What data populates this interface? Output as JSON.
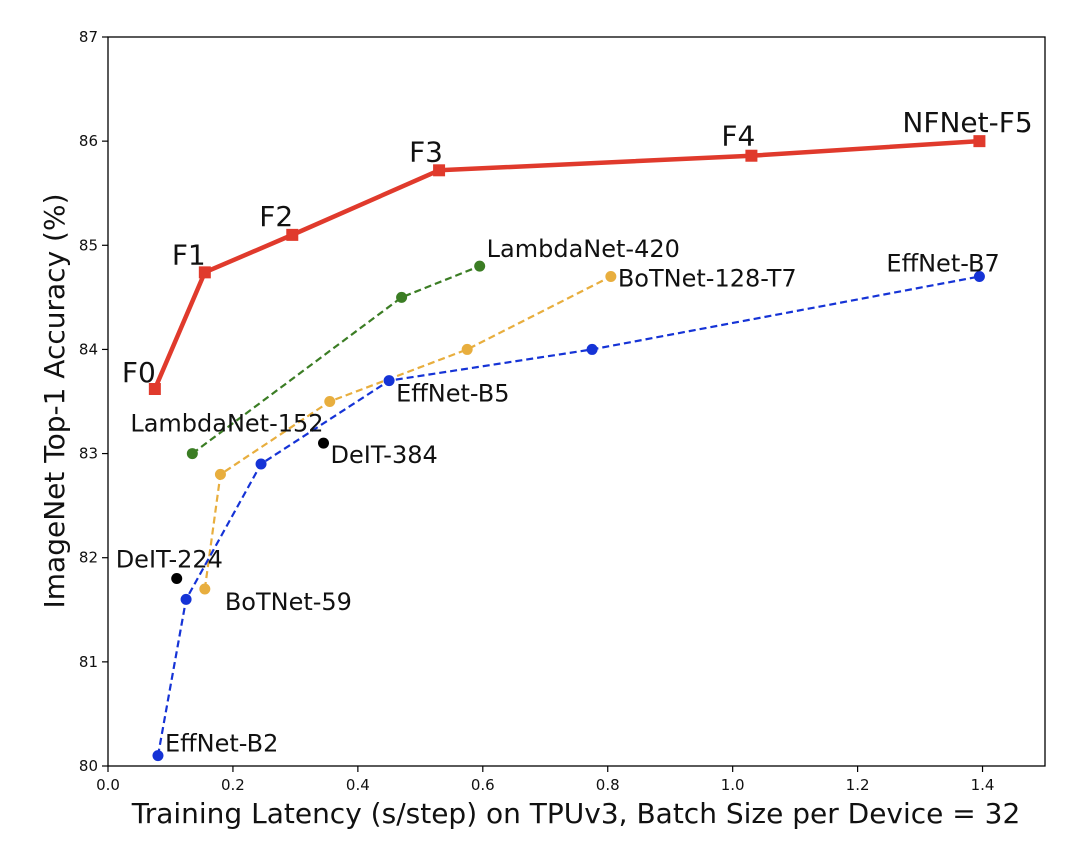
{
  "chart_data": {
    "type": "line",
    "title": "",
    "xlabel": "Training Latency (s/step) on TPUv3, Batch Size per Device = 32",
    "ylabel": "ImageNet Top-1 Accuracy (%)",
    "xlim": [
      0.0,
      1.5
    ],
    "ylim": [
      80,
      87
    ],
    "xticks": [
      "0.0",
      "0.2",
      "0.4",
      "0.6",
      "0.8",
      "1.0",
      "1.2",
      "1.4"
    ],
    "yticks": [
      "80",
      "81",
      "82",
      "83",
      "84",
      "85",
      "86",
      "87"
    ],
    "grid": false,
    "series": [
      {
        "name": "NFNet",
        "color": "#e03a2c",
        "line": "solid",
        "marker": "square",
        "points": [
          {
            "x": 0.075,
            "y": 83.62,
            "label": "F0"
          },
          {
            "x": 0.155,
            "y": 84.74,
            "label": "F1"
          },
          {
            "x": 0.295,
            "y": 85.1,
            "label": "F2"
          },
          {
            "x": 0.53,
            "y": 85.72,
            "label": "F3"
          },
          {
            "x": 1.03,
            "y": 85.86,
            "label": "F4"
          },
          {
            "x": 1.395,
            "y": 86.0,
            "label": "NFNet-F5"
          }
        ]
      },
      {
        "name": "LambdaNet",
        "color": "#3b7d24",
        "line": "dashed",
        "marker": "circle",
        "points": [
          {
            "x": 0.135,
            "y": 83.0,
            "label": "LambdaNet-152"
          },
          {
            "x": 0.47,
            "y": 84.5,
            "label": ""
          },
          {
            "x": 0.595,
            "y": 84.8,
            "label": "LambdaNet-420"
          }
        ]
      },
      {
        "name": "BoTNet",
        "color": "#e8ae3e",
        "line": "dashed",
        "marker": "circle",
        "points": [
          {
            "x": 0.155,
            "y": 81.7,
            "label": "BoTNet-59"
          },
          {
            "x": 0.18,
            "y": 82.8,
            "label": ""
          },
          {
            "x": 0.355,
            "y": 83.5,
            "label": ""
          },
          {
            "x": 0.575,
            "y": 84.0,
            "label": ""
          },
          {
            "x": 0.805,
            "y": 84.7,
            "label": "BoTNet-128-T7"
          }
        ]
      },
      {
        "name": "EffNet",
        "color": "#1533d6",
        "line": "dashed",
        "marker": "circle",
        "points": [
          {
            "x": 0.08,
            "y": 80.1,
            "label": "EffNet-B2"
          },
          {
            "x": 0.125,
            "y": 81.6,
            "label": ""
          },
          {
            "x": 0.245,
            "y": 82.9,
            "label": ""
          },
          {
            "x": 0.45,
            "y": 83.7,
            "label": "EffNet-B5"
          },
          {
            "x": 0.775,
            "y": 84.0,
            "label": ""
          },
          {
            "x": 1.395,
            "y": 84.7,
            "label": "EffNet-B7"
          }
        ]
      },
      {
        "name": "DeIT",
        "color": "#000000",
        "line": "none",
        "marker": "circle",
        "points": [
          {
            "x": 0.11,
            "y": 81.8,
            "label": "DeIT-224"
          },
          {
            "x": 0.345,
            "y": 83.1,
            "label": "DeIT-384"
          }
        ]
      }
    ]
  }
}
